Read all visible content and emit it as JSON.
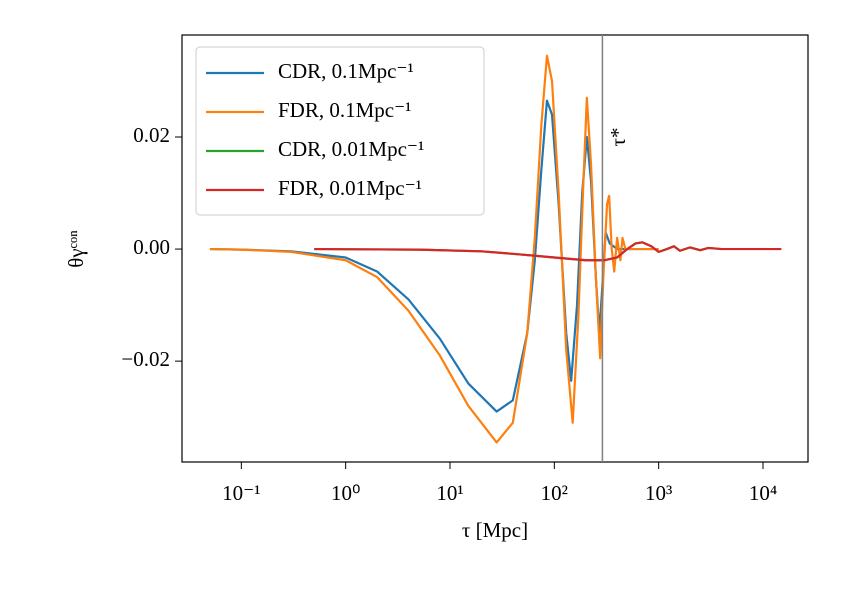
{
  "chart_data": {
    "type": "line",
    "xlabel": "τ [Mpc]",
    "ylabel": "θγᶜᵒⁿ",
    "xscale": "log",
    "xlim": [
      0.027,
      27000
    ],
    "ylim": [
      -0.038,
      0.0382
    ],
    "xticks": [
      {
        "value": 0.1,
        "label": "10⁻¹"
      },
      {
        "value": 1,
        "label": "10⁰"
      },
      {
        "value": 10,
        "label": "10¹"
      },
      {
        "value": 100,
        "label": "10²"
      },
      {
        "value": 1000,
        "label": "10³"
      },
      {
        "value": 10000,
        "label": "10⁴"
      }
    ],
    "yticks": [
      {
        "value": -0.02,
        "label": "−0.02"
      },
      {
        "value": 0,
        "label": "0.00"
      },
      0.02
    ],
    "legend": "upper left",
    "vline": {
      "x": 289,
      "label": "τ*"
    },
    "series": [
      {
        "name": "CDR, 0.1Mpc⁻¹",
        "color": "#1f77b4",
        "x": [
          0.05,
          0.1,
          0.3,
          1,
          2,
          4,
          8,
          15,
          28,
          40,
          55,
          65,
          75,
          85,
          95,
          110,
          130,
          145,
          165,
          185,
          205,
          225,
          250,
          270,
          290,
          310,
          340,
          400,
          1000
        ],
        "values": [
          0,
          -0.0001,
          -0.0004,
          -0.0015,
          -0.004,
          -0.009,
          -0.016,
          -0.024,
          -0.029,
          -0.027,
          -0.015,
          -0.002,
          0.014,
          0.0265,
          0.024,
          0.008,
          -0.015,
          -0.0235,
          -0.01,
          0.01,
          0.02,
          0.012,
          -0.005,
          -0.015,
          -0.006,
          0.003,
          0.001,
          0,
          0
        ]
      },
      {
        "name": "FDR, 0.1Mpc⁻¹",
        "color": "#ff7f0e",
        "x": [
          0.05,
          0.1,
          0.3,
          1,
          2,
          4,
          8,
          15,
          28,
          40,
          55,
          65,
          75,
          85,
          95,
          110,
          130,
          150,
          170,
          190,
          205,
          225,
          250,
          275,
          295,
          320,
          335,
          355,
          375,
          400,
          430,
          450,
          480,
          1000
        ],
        "values": [
          0,
          -0.0001,
          -0.0005,
          -0.002,
          -0.005,
          -0.011,
          -0.019,
          -0.028,
          -0.0345,
          -0.031,
          -0.015,
          0.002,
          0.022,
          0.0345,
          0.03,
          0.01,
          -0.018,
          -0.031,
          -0.012,
          0.012,
          0.027,
          0.015,
          -0.005,
          -0.0195,
          -0.005,
          0.008,
          0.0095,
          0,
          -0.004,
          0.002,
          -0.002,
          0.002,
          0,
          0
        ]
      },
      {
        "name": "CDR, 0.01Mpc⁻¹",
        "color": "#2ca02c",
        "x": [
          0.5,
          5,
          20,
          50,
          100,
          200,
          300,
          400,
          500,
          600,
          700,
          850,
          1000,
          1200,
          1400,
          1600,
          2000,
          2500,
          3000,
          4000
        ],
        "values": [
          0,
          -0.0001,
          -0.0004,
          -0.001,
          -0.0015,
          -0.002,
          -0.002,
          -0.0015,
          0,
          0.001,
          0.0012,
          0.0005,
          -0.0005,
          0,
          0.0005,
          -0.0003,
          0.0003,
          -0.0002,
          0.0002,
          0
        ]
      },
      {
        "name": "FDR, 0.01Mpc⁻¹",
        "color": "#d62728",
        "x": [
          0.5,
          5,
          20,
          50,
          100,
          200,
          300,
          400,
          500,
          600,
          700,
          850,
          1000,
          1200,
          1400,
          1600,
          2000,
          2500,
          3000,
          4000,
          15000
        ],
        "values": [
          0,
          -0.0001,
          -0.0004,
          -0.001,
          -0.0015,
          -0.002,
          -0.002,
          -0.0015,
          0,
          0.001,
          0.0012,
          0.0005,
          -0.0005,
          0,
          0.0005,
          -0.0003,
          0.0003,
          -0.0002,
          0.0002,
          0,
          0
        ]
      }
    ]
  }
}
